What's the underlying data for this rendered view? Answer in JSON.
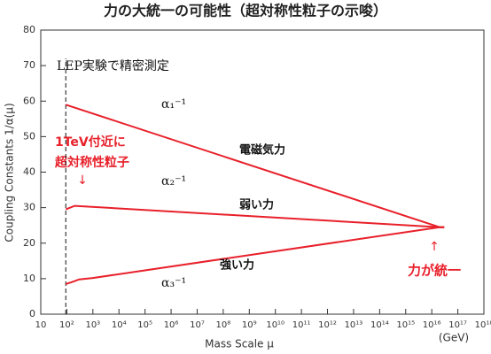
{
  "chart_data": {
    "type": "line",
    "title": "力の大統一の可能性（超対称性粒子の示唆）",
    "x_label": "Mass Scale μ",
    "x_unit": "(GeV)",
    "y_label": "Coupling Constants 1/α(μ)",
    "x_scale": "log",
    "xlim": [
      10,
      1e+18
    ],
    "ylim": [
      0,
      80
    ],
    "xticks": [
      10,
      {
        "value": 100.0,
        "label": "10²"
      },
      {
        "value": 1000.0,
        "label": "10³"
      },
      {
        "value": 10000.0,
        "label": "10⁴"
      },
      {
        "value": 100000.0,
        "label": "10⁵"
      },
      {
        "value": 1000000.0,
        "label": "10⁶"
      },
      {
        "value": 10000000.0,
        "label": "10⁷"
      },
      {
        "value": 100000000.0,
        "label": "10⁸"
      },
      {
        "value": 1000000000.0,
        "label": "10⁹"
      },
      {
        "value": 10000000000.0,
        "label": "10¹⁰"
      },
      {
        "value": 100000000000.0,
        "label": "10¹¹"
      },
      {
        "value": 1000000000000.0,
        "label": "10¹²"
      },
      {
        "value": 10000000000000.0,
        "label": "10¹³"
      },
      {
        "value": 100000000000000.0,
        "label": "10¹⁴"
      },
      {
        "value": 1000000000000000.0,
        "label": "10¹⁵"
      },
      {
        "value": 1e+16,
        "label": "10¹⁶"
      },
      {
        "value": 1e+17,
        "label": "10¹⁷"
      },
      {
        "value": 1e+18,
        "label": "10¹⁸"
      }
    ],
    "yticks": [
      0,
      10,
      20,
      30,
      40,
      50,
      60,
      70,
      80
    ],
    "reference_line": {
      "x": 91,
      "label": "LEP実験で精密測定"
    },
    "series": [
      {
        "name": "α₁⁻¹",
        "force": "電磁気力",
        "color": "#e8202a",
        "x": [
          91,
          2e+16,
          3e+16
        ],
        "values": [
          59,
          24.5,
          24.5
        ]
      },
      {
        "name": "α₂⁻¹",
        "force": "弱い力",
        "color": "#e8202a",
        "x": [
          91,
          200,
          2e+16,
          3e+16
        ],
        "values": [
          29.5,
          30.5,
          24.5,
          24.5
        ]
      },
      {
        "name": "α₃⁻¹",
        "force": "強い力",
        "color": "#e8202a",
        "x": [
          91,
          150,
          300,
          1000,
          2e+16,
          3e+16
        ],
        "values": [
          8.5,
          9,
          9.8,
          10.2,
          24.5,
          24.5
        ]
      }
    ],
    "annotations": {
      "susy_line1": "1TeV付近に",
      "susy_line2": "超対称性粒子",
      "susy_arrow": "↓",
      "unify_arrow": "↑",
      "unify": "力が統一"
    }
  }
}
